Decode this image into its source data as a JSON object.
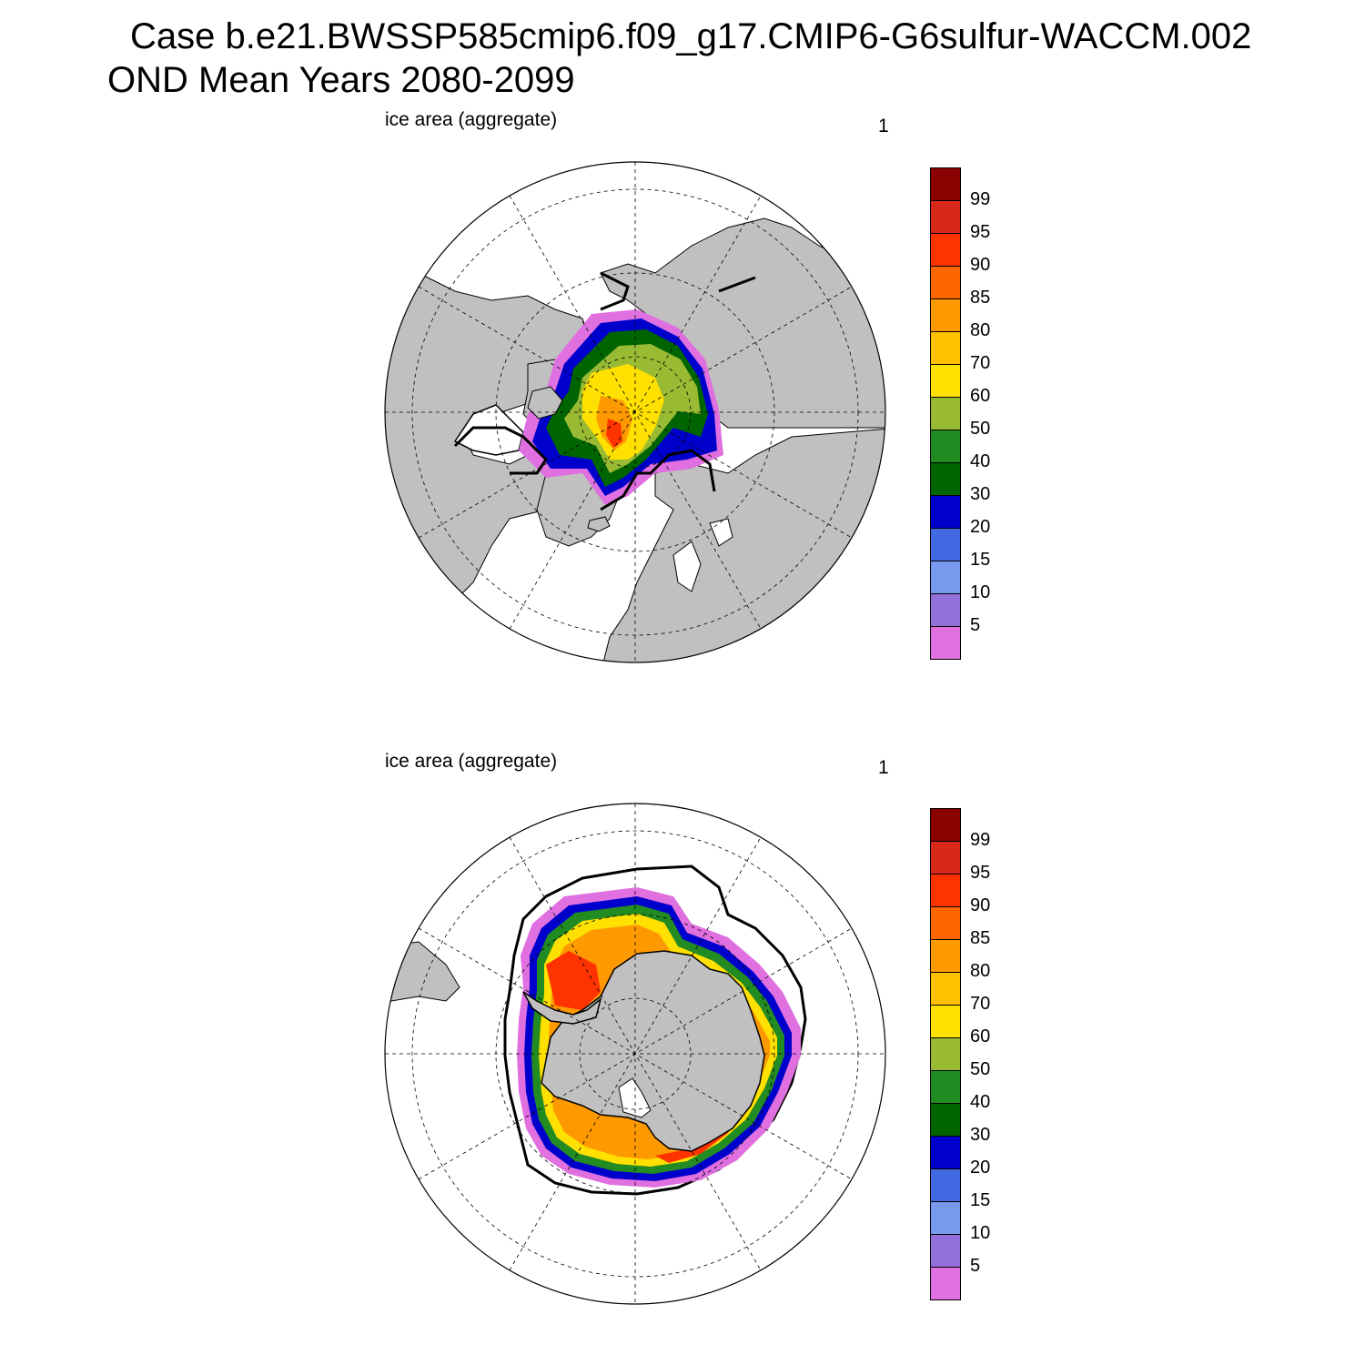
{
  "title": {
    "line1": "Case b.e21.BWSSP585cmip6.f09_g17.CMIP6-G6sulfur-WACCM.002",
    "line2": "OND Mean   Years 2080-2099"
  },
  "panels": [
    {
      "name": "north",
      "left_label": "ice area  (aggregate)",
      "right_label": "1",
      "hemisphere": "Northern"
    },
    {
      "name": "south",
      "left_label": "ice area  (aggregate)",
      "right_label": "1",
      "hemisphere": "Southern"
    }
  ],
  "colorbar": {
    "levels": [
      "99",
      "95",
      "90",
      "85",
      "80",
      "70",
      "60",
      "50",
      "40",
      "30",
      "20",
      "15",
      "10",
      "5"
    ],
    "colors": [
      "#8b0000",
      "#d8281a",
      "#ff3300",
      "#ff6600",
      "#ff9900",
      "#ffc000",
      "#ffe000",
      "#99bb33",
      "#228b22",
      "#006400",
      "#0000cd",
      "#4169e1",
      "#7799ee",
      "#9370db",
      "#e070e0"
    ]
  },
  "map_colors": {
    "land": "#c0c0c0",
    "ocean": "#ffffff",
    "coast": "#000000",
    "grid": "#000000"
  }
}
